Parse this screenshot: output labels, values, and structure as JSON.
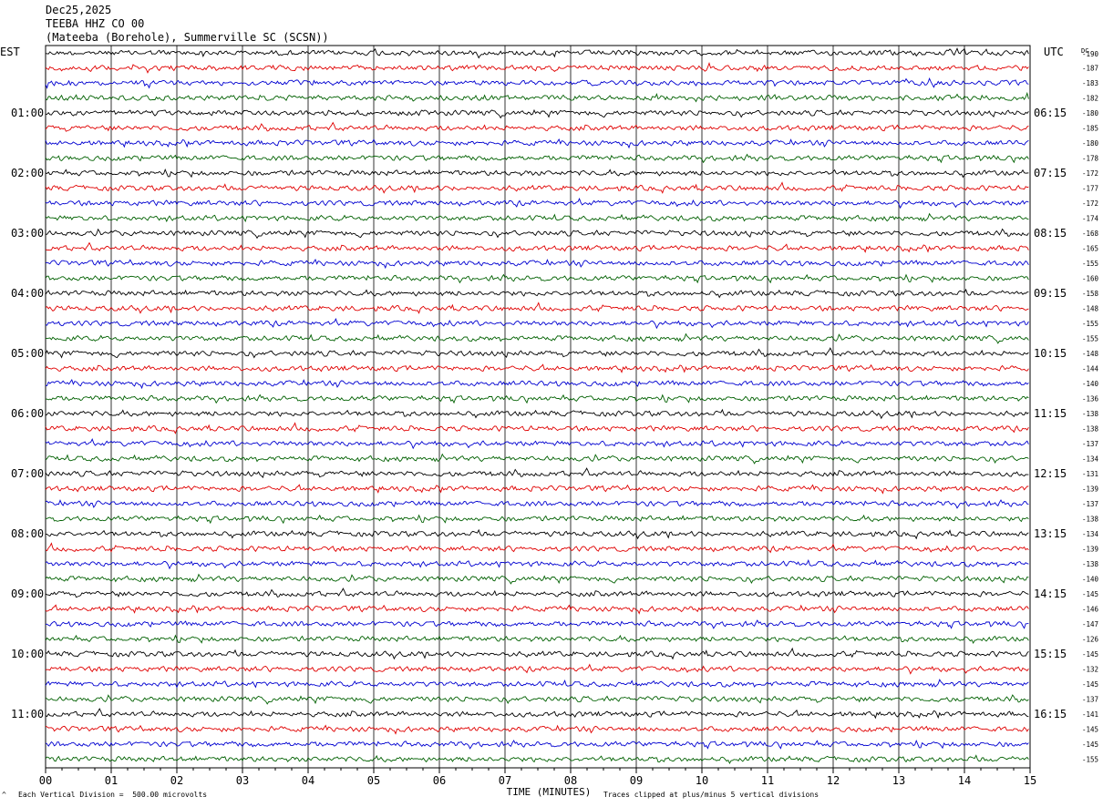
{
  "header": {
    "date": "Dec25,2025",
    "station": "TEEBA HHZ CO 00",
    "location": "(Mateeba (Borehole), Summerville SC (SCSN))"
  },
  "chart_data": {
    "type": "line",
    "left_timezone": "EST",
    "right_timezone": "UTC",
    "dc_label": "DC",
    "xlabel": "TIME (MINUTES)",
    "xlim": [
      0,
      15
    ],
    "x_ticks": [
      "00",
      "01",
      "02",
      "03",
      "04",
      "05",
      "06",
      "07",
      "08",
      "09",
      "10",
      "11",
      "12",
      "13",
      "14",
      "15"
    ],
    "trace_colors": [
      "#000000",
      "#e00000",
      "#0000d0",
      "#006000"
    ],
    "left_hour_labels": [
      "",
      "01:00",
      "02:00",
      "03:00",
      "04:00",
      "05:00",
      "06:00",
      "07:00",
      "08:00",
      "09:00",
      "10:00",
      "11:00"
    ],
    "right_hour_labels": [
      "",
      "06:15",
      "07:15",
      "08:15",
      "09:15",
      "10:15",
      "11:15",
      "12:15",
      "13:15",
      "14:15",
      "15:15",
      "16:15"
    ],
    "dc_offsets": [
      -190,
      -187,
      -183,
      -182,
      -180,
      -185,
      -180,
      -178,
      -172,
      -177,
      -172,
      -174,
      -168,
      -165,
      -155,
      -160,
      -158,
      -148,
      -155,
      -155,
      -148,
      -144,
      -140,
      -136,
      -138,
      -138,
      -137,
      -134,
      -131,
      -139,
      -137,
      -138,
      -134,
      -139,
      -138,
      -140,
      -145,
      -146,
      -147,
      -126,
      -145,
      -132,
      -145,
      -137,
      -141,
      -145,
      -145,
      -155
    ],
    "scale_note": "Each Vertical Division =  500.00 microvolts",
    "clip_note": "Traces clipped at plus/minus 5 vertical divisions",
    "corner_mark": "^"
  }
}
